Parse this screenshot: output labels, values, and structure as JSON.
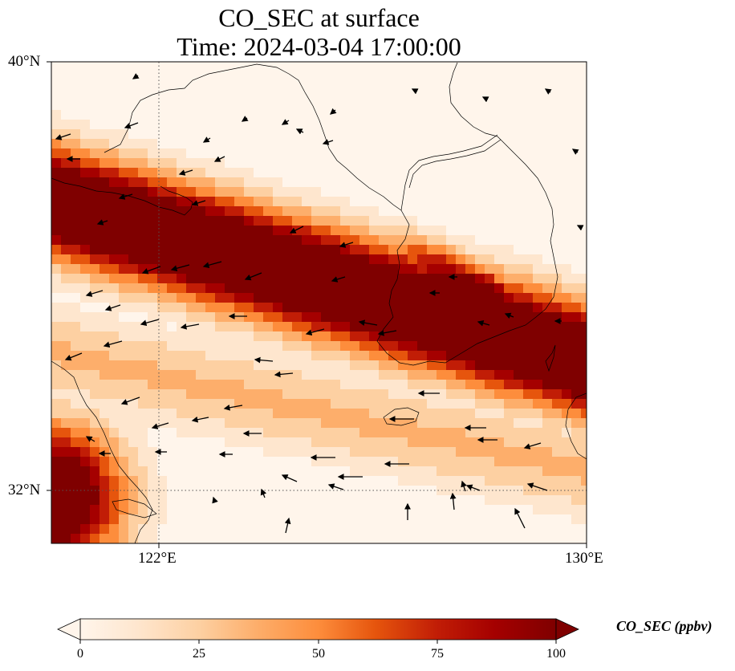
{
  "title": {
    "line1": "CO_SEC at surface",
    "line2": "Time: 2024-03-04 17:00:00"
  },
  "map": {
    "lon_range": [
      119.5,
      130
    ],
    "lat_range": [
      30.9,
      40
    ],
    "lat_ticks": [
      {
        "value": 40,
        "label": "40°N"
      },
      {
        "value": 32,
        "label": "32°N"
      }
    ],
    "lon_ticks": [
      {
        "value": 122,
        "label": "122°E"
      },
      {
        "value": 130,
        "label": "130°E"
      }
    ],
    "gridlines": {
      "lon": [
        122
      ],
      "lat": [
        32
      ]
    }
  },
  "field": {
    "variable": "CO_SEC",
    "units": "ppbv",
    "plume_bands": [
      {
        "description": "main band",
        "peak": 100
      },
      {
        "description": "southwest corner",
        "peak": 100
      }
    ]
  },
  "colorbar": {
    "label": "CO_SEC (ppbv)",
    "min": 0,
    "max": 100,
    "ticks": [
      "0",
      "25",
      "50",
      "75",
      "100"
    ],
    "colors": [
      "#fff5eb",
      "#fee6ce",
      "#fdd0a2",
      "#fdae6b",
      "#fd8d3c",
      "#e6550d",
      "#c11d06",
      "#a50000",
      "#7f0000"
    ],
    "extend": "both"
  }
}
